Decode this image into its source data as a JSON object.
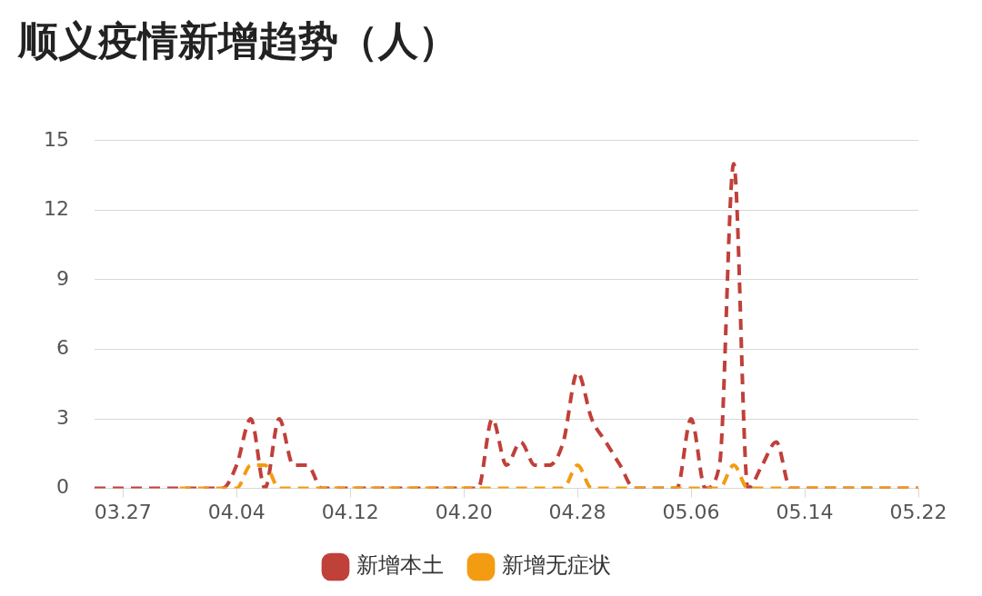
{
  "chart_data": {
    "type": "line",
    "title": "顺义疫情新增趋势（人）",
    "categories": [
      null,
      null,
      "03.27",
      null,
      null,
      null,
      null,
      null,
      null,
      null,
      "04.04",
      null,
      null,
      null,
      null,
      null,
      null,
      null,
      "04.12",
      null,
      null,
      null,
      null,
      null,
      null,
      null,
      "04.20",
      null,
      null,
      null,
      null,
      null,
      null,
      null,
      "04.28",
      null,
      null,
      null,
      null,
      null,
      null,
      null,
      "05.06",
      null,
      null,
      null,
      null,
      null,
      null,
      null,
      "05.14",
      null,
      null,
      null,
      null,
      null,
      null,
      null,
      "05.22"
    ],
    "series": [
      {
        "name": "新增本土",
        "color": "#c0403a",
        "values": [
          0,
          0,
          0,
          0,
          0,
          0,
          0,
          0,
          0,
          0,
          1,
          3,
          0,
          3,
          1,
          1,
          0,
          0,
          0,
          0,
          0,
          0,
          0,
          0,
          0,
          0,
          0,
          0,
          3,
          1,
          2,
          1,
          1,
          2,
          5,
          3,
          2,
          1,
          0,
          0,
          0,
          0,
          3,
          0,
          1,
          14,
          0,
          1,
          2,
          0,
          0,
          0,
          0,
          0,
          0,
          0,
          0,
          0,
          0
        ]
      },
      {
        "name": "新增无症状",
        "color": "#f39c12",
        "values": [
          null,
          null,
          null,
          null,
          null,
          null,
          0,
          0,
          0,
          0,
          0,
          1,
          1,
          0,
          0,
          0,
          0,
          0,
          0,
          0,
          0,
          0,
          0,
          0,
          0,
          0,
          0,
          0,
          0,
          0,
          0,
          0,
          0,
          0,
          1,
          0,
          0,
          0,
          0,
          0,
          0,
          0,
          0,
          0,
          0,
          1,
          0,
          0,
          0,
          0,
          0,
          0,
          0,
          0,
          0,
          0,
          0,
          0,
          0
        ]
      }
    ],
    "ylim": [
      0,
      15
    ],
    "yticks": [
      0,
      3,
      6,
      9,
      12,
      15
    ],
    "grid": "y",
    "legend": "bottom",
    "marker": "none",
    "line_style": "dashed"
  }
}
